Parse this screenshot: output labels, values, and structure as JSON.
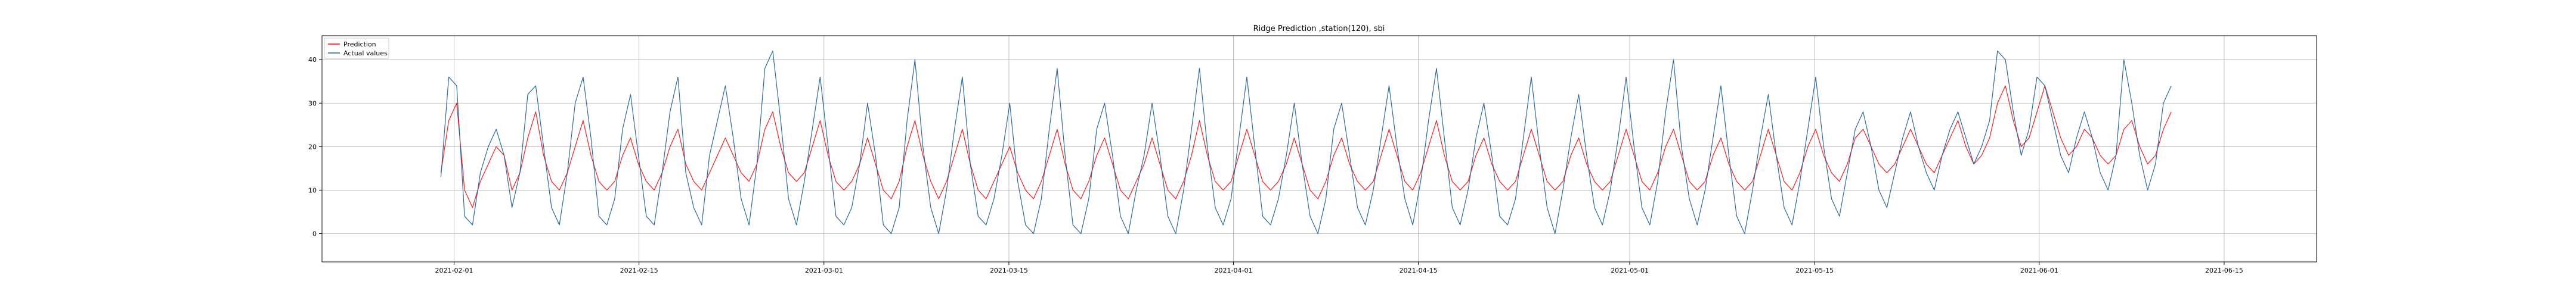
{
  "chart_data": {
    "type": "line",
    "title": "Ridge Prediction ,station(120), sbi",
    "xlabel": "",
    "ylabel": "",
    "grid": true,
    "legend_position": "top-left",
    "xlim": [
      "2021-01-22",
      "2021-06-22"
    ],
    "ylim": [
      -6.5,
      45.5
    ],
    "x_ticks": [
      "2021-02-01",
      "2021-02-15",
      "2021-03-01",
      "2021-03-15",
      "2021-04-01",
      "2021-04-15",
      "2021-05-01",
      "2021-05-15",
      "2021-06-01",
      "2021-06-15"
    ],
    "y_ticks": [
      0,
      10,
      20,
      30,
      40
    ],
    "x_start": "2021-01-31",
    "x_end": "2021-06-11",
    "series": [
      {
        "name": "Prediction",
        "color": "#ff0000",
        "values": [
          14,
          26,
          30,
          10,
          6,
          12,
          16,
          20,
          18,
          10,
          14,
          22,
          28,
          18,
          12,
          10,
          14,
          20,
          26,
          18,
          12,
          10,
          12,
          18,
          22,
          16,
          12,
          10,
          14,
          20,
          24,
          16,
          12,
          10,
          14,
          18,
          22,
          18,
          14,
          12,
          16,
          24,
          28,
          20,
          14,
          12,
          14,
          20,
          26,
          18,
          12,
          10,
          12,
          16,
          22,
          16,
          10,
          8,
          12,
          20,
          26,
          18,
          12,
          8,
          12,
          18,
          24,
          16,
          10,
          8,
          12,
          16,
          20,
          14,
          10,
          8,
          12,
          18,
          24,
          16,
          10,
          8,
          12,
          18,
          22,
          16,
          10,
          8,
          12,
          16,
          22,
          16,
          10,
          8,
          12,
          18,
          26,
          18,
          12,
          10,
          12,
          18,
          24,
          18,
          12,
          10,
          12,
          16,
          22,
          16,
          10,
          8,
          12,
          18,
          22,
          16,
          12,
          10,
          12,
          18,
          24,
          18,
          12,
          10,
          14,
          20,
          26,
          18,
          12,
          10,
          12,
          18,
          22,
          16,
          12,
          10,
          12,
          18,
          24,
          18,
          12,
          10,
          12,
          18,
          22,
          16,
          12,
          10,
          12,
          18,
          24,
          18,
          12,
          10,
          14,
          20,
          24,
          18,
          12,
          10,
          12,
          18,
          22,
          16,
          12,
          10,
          12,
          18,
          24,
          18,
          12,
          10,
          14,
          20,
          24,
          18,
          14,
          12,
          16,
          22,
          24,
          20,
          16,
          14,
          16,
          20,
          24,
          20,
          16,
          14,
          18,
          22,
          26,
          20,
          16,
          18,
          22,
          30,
          34,
          26,
          20,
          22,
          28,
          34,
          28,
          22,
          18,
          20,
          24,
          22,
          18,
          16,
          18,
          24,
          26,
          20,
          16,
          18,
          24,
          28
        ]
      },
      {
        "name": "Actual values",
        "color": "#1f5fa0",
        "values": [
          13,
          36,
          34,
          4,
          2,
          14,
          20,
          24,
          18,
          6,
          14,
          32,
          34,
          20,
          6,
          2,
          14,
          30,
          36,
          22,
          4,
          2,
          8,
          24,
          32,
          18,
          4,
          2,
          14,
          28,
          36,
          14,
          6,
          2,
          18,
          26,
          34,
          22,
          8,
          2,
          16,
          38,
          42,
          26,
          8,
          2,
          12,
          24,
          36,
          20,
          4,
          2,
          6,
          16,
          30,
          18,
          2,
          0,
          6,
          26,
          40,
          20,
          6,
          0,
          10,
          24,
          36,
          16,
          4,
          2,
          8,
          18,
          30,
          12,
          2,
          0,
          8,
          24,
          38,
          18,
          2,
          0,
          8,
          24,
          30,
          18,
          4,
          0,
          10,
          18,
          30,
          18,
          4,
          0,
          10,
          24,
          38,
          20,
          6,
          2,
          8,
          22,
          36,
          20,
          4,
          2,
          8,
          18,
          30,
          16,
          4,
          0,
          8,
          24,
          30,
          18,
          6,
          2,
          10,
          22,
          34,
          20,
          8,
          2,
          12,
          26,
          38,
          22,
          6,
          2,
          10,
          22,
          30,
          18,
          4,
          2,
          8,
          22,
          36,
          20,
          6,
          0,
          10,
          22,
          32,
          18,
          6,
          2,
          10,
          22,
          36,
          20,
          6,
          2,
          12,
          28,
          40,
          20,
          8,
          2,
          10,
          22,
          34,
          18,
          4,
          0,
          10,
          22,
          32,
          18,
          6,
          2,
          12,
          24,
          36,
          20,
          8,
          4,
          14,
          24,
          28,
          20,
          10,
          6,
          14,
          22,
          28,
          20,
          14,
          10,
          18,
          24,
          28,
          22,
          16,
          20,
          26,
          42,
          40,
          28,
          18,
          24,
          36,
          34,
          26,
          18,
          14,
          22,
          28,
          22,
          14,
          10,
          18,
          40,
          30,
          18,
          10,
          16,
          30,
          34
        ]
      }
    ]
  }
}
